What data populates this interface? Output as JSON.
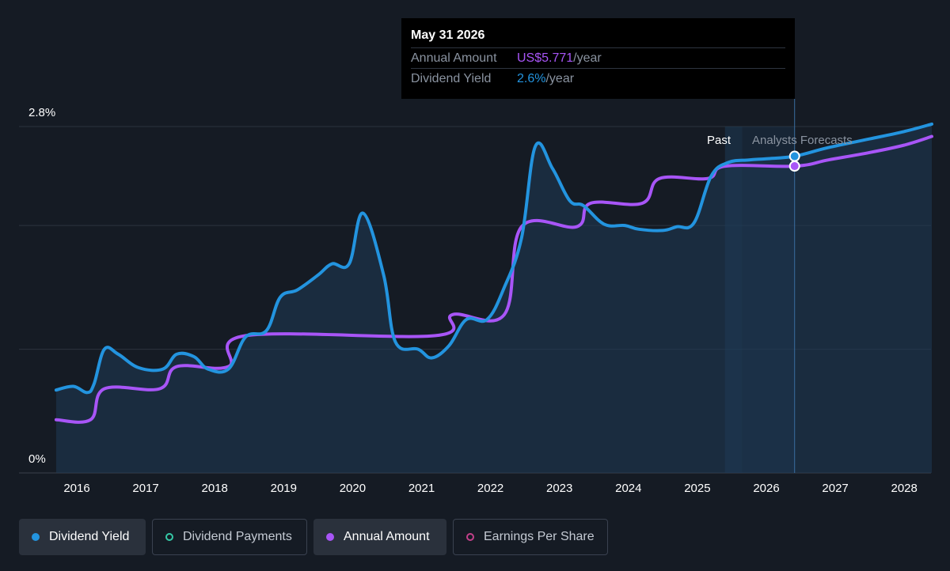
{
  "tooltip": {
    "date": "May 31 2026",
    "amount_label": "Annual Amount",
    "amount_value": "US$5.771",
    "amount_unit": "/year",
    "yield_label": "Dividend Yield",
    "yield_value": "2.6%",
    "yield_unit": "/year"
  },
  "regions": {
    "past": "Past",
    "forecast": "Analysts Forecasts"
  },
  "legend": [
    {
      "label": "Dividend Yield",
      "state": "active",
      "color": "#2394df"
    },
    {
      "label": "Dividend Payments",
      "state": "inactive",
      "color": "#35c9a7"
    },
    {
      "label": "Annual Amount",
      "state": "active",
      "color": "#a855f7"
    },
    {
      "label": "Earnings Per Share",
      "state": "inactive",
      "color": "#c2408a"
    }
  ],
  "chart_data": {
    "type": "line",
    "title": "",
    "xlabel": "",
    "ylabel": "",
    "ylim": [
      0,
      2.8
    ],
    "y_tick_labels": [
      "2.8%",
      "0%"
    ],
    "x_tick_labels": [
      "2016",
      "2017",
      "2018",
      "2019",
      "2020",
      "2021",
      "2022",
      "2023",
      "2024",
      "2025",
      "2026",
      "2027",
      "2028"
    ],
    "x_range": [
      2015.3,
      2028.4
    ],
    "gridlines": [
      0,
      1.0,
      2.0,
      2.8
    ],
    "past_end": 2025.4,
    "forecast_start": 2025.65,
    "cursor_x": 2026.41,
    "series": [
      {
        "name": "Dividend Yield",
        "color": "#2394df",
        "points": [
          [
            2015.7,
            0.67
          ],
          [
            2015.95,
            0.7
          ],
          [
            2016.15,
            0.65
          ],
          [
            2016.25,
            0.72
          ],
          [
            2016.4,
            1.0
          ],
          [
            2016.6,
            0.96
          ],
          [
            2016.9,
            0.85
          ],
          [
            2017.25,
            0.84
          ],
          [
            2017.45,
            0.96
          ],
          [
            2017.7,
            0.94
          ],
          [
            2017.9,
            0.84
          ],
          [
            2018.2,
            0.84
          ],
          [
            2018.45,
            1.1
          ],
          [
            2018.75,
            1.15
          ],
          [
            2018.95,
            1.42
          ],
          [
            2019.2,
            1.48
          ],
          [
            2019.5,
            1.6
          ],
          [
            2019.7,
            1.69
          ],
          [
            2019.95,
            1.69
          ],
          [
            2020.15,
            2.1
          ],
          [
            2020.45,
            1.6
          ],
          [
            2020.62,
            1.06
          ],
          [
            2020.95,
            1.0
          ],
          [
            2021.15,
            0.93
          ],
          [
            2021.4,
            1.03
          ],
          [
            2021.65,
            1.24
          ],
          [
            2021.95,
            1.24
          ],
          [
            2022.2,
            1.5
          ],
          [
            2022.45,
            1.9
          ],
          [
            2022.65,
            2.64
          ],
          [
            2022.9,
            2.46
          ],
          [
            2023.15,
            2.2
          ],
          [
            2023.35,
            2.16
          ],
          [
            2023.65,
            2.01
          ],
          [
            2023.95,
            2.0
          ],
          [
            2024.15,
            1.97
          ],
          [
            2024.5,
            1.96
          ],
          [
            2024.7,
            1.99
          ],
          [
            2024.95,
            2.02
          ],
          [
            2025.2,
            2.4
          ],
          [
            2025.45,
            2.51
          ],
          [
            2025.75,
            2.53
          ],
          [
            2026.0,
            2.54
          ],
          [
            2026.41,
            2.56
          ],
          [
            2026.9,
            2.63
          ],
          [
            2027.5,
            2.7
          ],
          [
            2028.0,
            2.76
          ],
          [
            2028.4,
            2.82
          ]
        ]
      },
      {
        "name": "Annual Amount",
        "color": "#a855f7",
        "points": [
          [
            2015.7,
            0.43
          ],
          [
            2016.2,
            0.43
          ],
          [
            2016.4,
            0.68
          ],
          [
            2017.2,
            0.68
          ],
          [
            2017.45,
            0.86
          ],
          [
            2018.2,
            0.86
          ],
          [
            2018.45,
            1.11
          ],
          [
            2021.2,
            1.11
          ],
          [
            2021.45,
            1.28
          ],
          [
            2022.2,
            1.28
          ],
          [
            2022.45,
            1.99
          ],
          [
            2023.25,
            1.99
          ],
          [
            2023.45,
            2.18
          ],
          [
            2024.2,
            2.18
          ],
          [
            2024.45,
            2.38
          ],
          [
            2025.15,
            2.38
          ],
          [
            2025.4,
            2.48
          ],
          [
            2026.41,
            2.48
          ],
          [
            2026.9,
            2.53
          ],
          [
            2027.5,
            2.59
          ],
          [
            2028.0,
            2.65
          ],
          [
            2028.4,
            2.72
          ]
        ]
      }
    ],
    "highlighted_points": [
      {
        "series": "Dividend Yield",
        "x": 2026.41,
        "y": 2.56
      },
      {
        "series": "Annual Amount",
        "x": 2026.41,
        "y": 2.48
      }
    ]
  }
}
